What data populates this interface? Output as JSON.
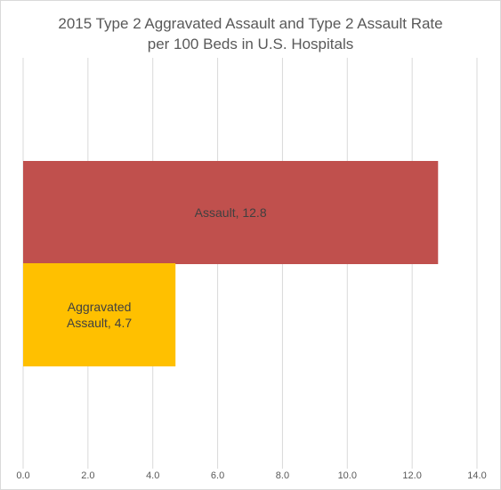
{
  "chart_data": {
    "type": "bar",
    "orientation": "horizontal",
    "title_line1": "2015 Type 2 Aggravated Assault and Type 2 Assault Rate",
    "title_line2": "per 100 Beds in U.S. Hospitals",
    "xlabel": "",
    "ylabel": "",
    "xlim": [
      0,
      14
    ],
    "x_ticks": [
      "0.0",
      "2.0",
      "4.0",
      "6.0",
      "8.0",
      "10.0",
      "12.0",
      "14.0"
    ],
    "grid": "vertical",
    "legend": "none",
    "bars": [
      {
        "category": "Assault",
        "value": 12.8,
        "label_lines": [
          "Assault, 12.8"
        ],
        "color": "#c0504d"
      },
      {
        "category": "Aggravated Assault",
        "value": 4.7,
        "label_lines": [
          "Aggravated",
          "Assault, 4.7"
        ],
        "color": "#ffc000"
      }
    ]
  }
}
